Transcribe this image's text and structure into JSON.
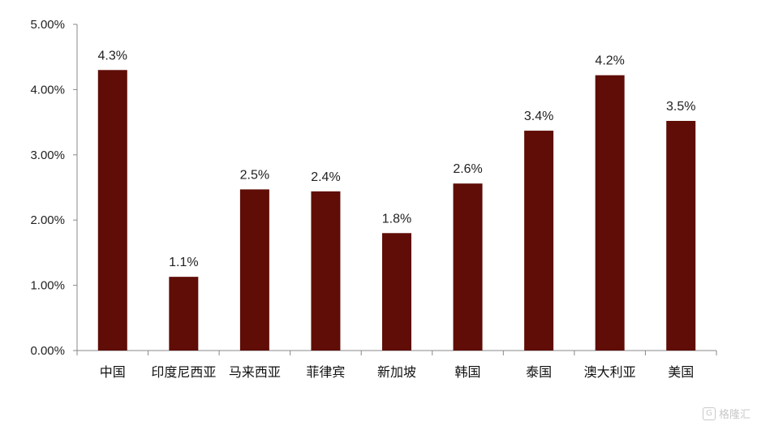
{
  "chart_data": {
    "type": "bar",
    "categories": [
      "中国",
      "印度尼西亚",
      "马来西亚",
      "菲律宾",
      "新加坡",
      "韩国",
      "泰国",
      "澳大利亚",
      "美国"
    ],
    "values": [
      4.3,
      1.13,
      2.47,
      2.44,
      1.8,
      2.56,
      3.37,
      4.22,
      3.52
    ],
    "data_labels": [
      "4.3%",
      "1.1%",
      "2.5%",
      "2.4%",
      "1.8%",
      "2.6%",
      "3.4%",
      "4.2%",
      "3.5%"
    ],
    "yticks": [
      "0.00%",
      "1.00%",
      "2.00%",
      "3.00%",
      "4.00%",
      "5.00%"
    ],
    "ylim": [
      0,
      5
    ],
    "bar_color": "#5f0d06",
    "grid": false,
    "title": "",
    "xlabel": "",
    "ylabel": ""
  },
  "watermark": {
    "text": "格隆汇",
    "icon": "g-logo-icon"
  }
}
